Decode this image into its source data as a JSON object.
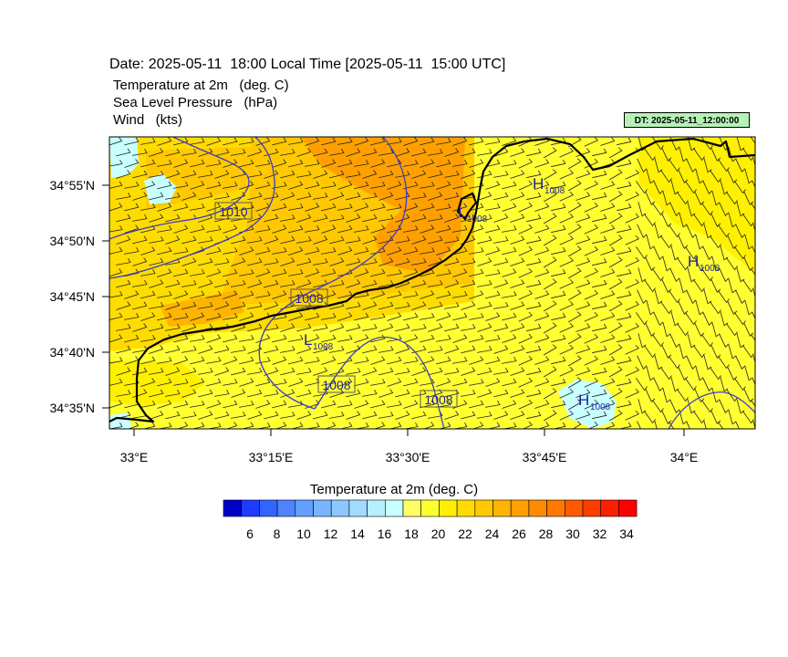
{
  "header": {
    "date_line": "Date: 2025-05-11  18:00 Local Time [2025-05-11  15:00 UTC]",
    "fields": [
      "Temperature at 2m   (deg. C)",
      "Sea Level Pressure   (hPa)",
      "Wind   (kts)"
    ],
    "dt_badge": "DT: 2025-05-11_12:00:00"
  },
  "map": {
    "lat_labels": [
      "34°55'N",
      "34°50'N",
      "34°45'N",
      "34°40'N",
      "34°35'N"
    ],
    "lon_labels": [
      "33°E",
      "33°15'E",
      "33°30'E",
      "33°45'E",
      "34°E"
    ],
    "isobar_labels": [
      "1010",
      "1008",
      "1008",
      "1008"
    ],
    "pressure_centers": [
      {
        "type": "L",
        "value": "1008"
      },
      {
        "type": "L",
        "value": "1008"
      },
      {
        "type": "H",
        "value": "1008"
      },
      {
        "type": "H",
        "value": "1008"
      },
      {
        "type": "H",
        "value": "1008"
      }
    ]
  },
  "colorbar": {
    "title": "Temperature at 2m  (deg. C)",
    "tick_labels": [
      "6",
      "8",
      "10",
      "12",
      "14",
      "16",
      "18",
      "20",
      "22",
      "24",
      "26",
      "28",
      "30",
      "32",
      "34"
    ],
    "colors": [
      "#0000c8",
      "#1e3cff",
      "#3264ff",
      "#5082ff",
      "#64a0ff",
      "#78b4ff",
      "#8cc8ff",
      "#a0dcff",
      "#b4f0ff",
      "#c8ffff",
      "#ffff64",
      "#ffff32",
      "#fff000",
      "#ffdc00",
      "#ffc800",
      "#ffb400",
      "#ffa000",
      "#ff8c00",
      "#ff7800",
      "#ff5a00",
      "#ff3c00",
      "#ff1e00",
      "#ff0000"
    ]
  }
}
